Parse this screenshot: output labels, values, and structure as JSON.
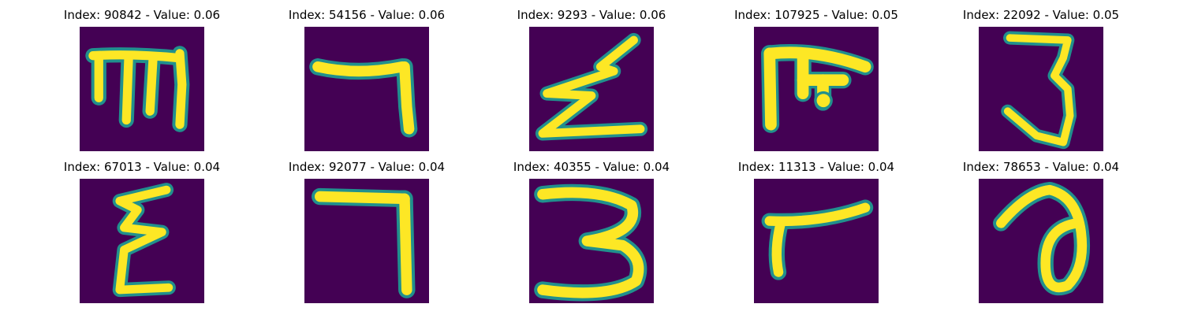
{
  "colors": {
    "background": "#440154",
    "stroke": "#fde725",
    "edge": "#21908d"
  },
  "samples": [
    {
      "title": "Index: 90842 - Value: 0.06"
    },
    {
      "title": "Index: 54156 - Value: 0.06"
    },
    {
      "title": "Index: 9293 - Value: 0.06"
    },
    {
      "title": "Index: 107925 - Value: 0.05"
    },
    {
      "title": "Index: 22092 - Value: 0.05"
    },
    {
      "title": "Index: 67013 - Value: 0.04"
    },
    {
      "title": "Index: 92077 - Value: 0.04"
    },
    {
      "title": "Index: 40355 - Value: 0.04"
    },
    {
      "title": "Index: 11313 - Value: 0.04"
    },
    {
      "title": "Index: 78653 - Value: 0.04"
    }
  ]
}
